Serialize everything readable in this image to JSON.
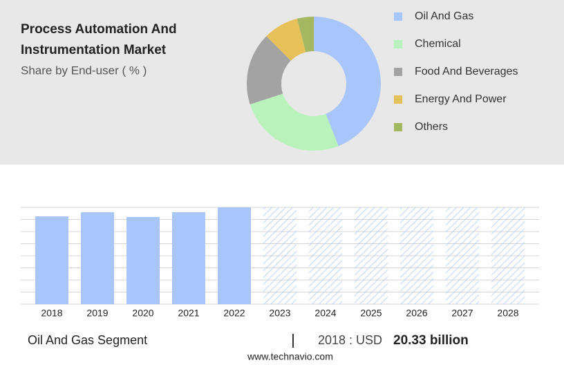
{
  "chart_data": [
    {
      "type": "pie",
      "title": "Process Automation And Instrumentation Market",
      "subtitle": "Share by End-user ( % )",
      "categories": [
        "Oil And Gas",
        "Chemical",
        "Food And Beverages",
        "Energy And Power",
        "Others"
      ],
      "values": [
        44,
        26,
        17.5,
        8.5,
        4
      ],
      "colors": [
        "#a8c6fb",
        "#b9f3bb",
        "#a3a3a3",
        "#e6c15a",
        "#a4b862"
      ]
    },
    {
      "type": "bar",
      "categories": [
        "2018",
        "2019",
        "2020",
        "2021",
        "2022",
        "2023",
        "2024",
        "2025",
        "2026",
        "2027",
        "2028"
      ],
      "values": [
        20.33,
        21.29,
        20.17,
        21.29,
        22.41,
        null,
        null,
        null,
        null,
        null,
        null
      ],
      "color": "#a8c6fb"
    }
  ],
  "footer": {
    "segment": "Oil And Gas Segment",
    "label": "2018 : USD",
    "value": "20.33 billion",
    "source": "www.technavio.com"
  }
}
